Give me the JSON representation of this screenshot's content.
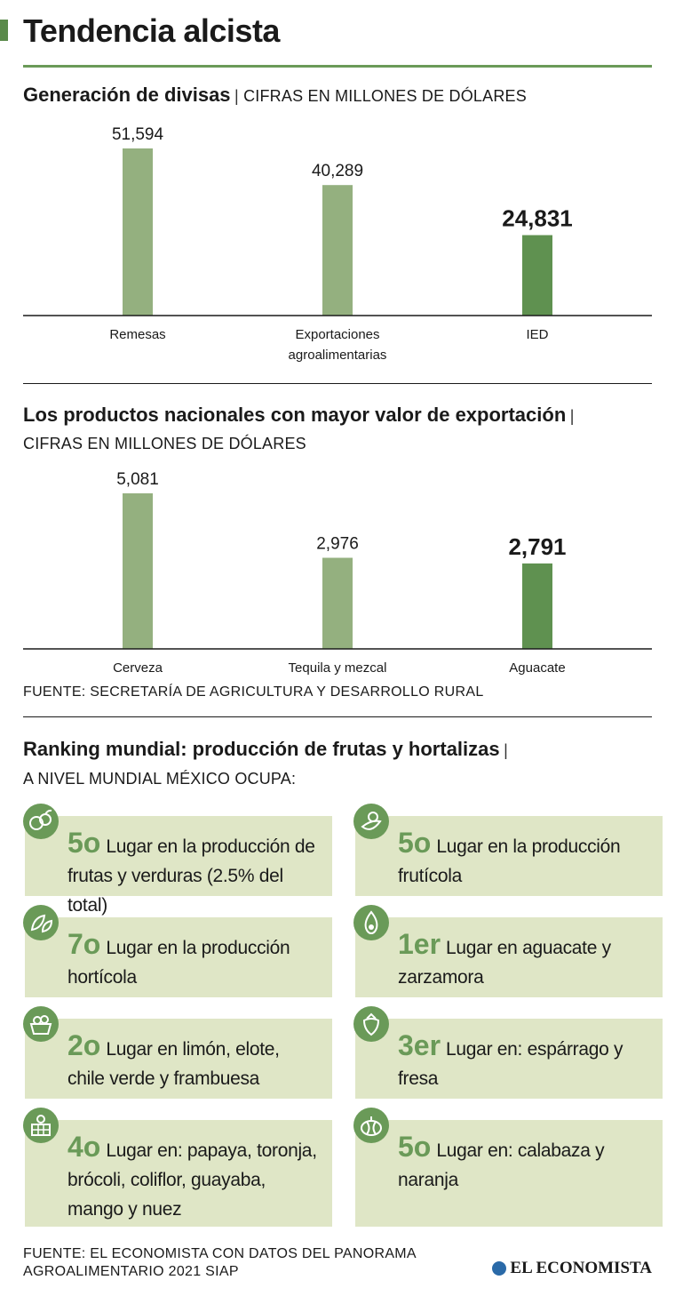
{
  "title": "Tendencia alcista",
  "section1": {
    "title": "Generación de divisas",
    "subtitle": "CIFRAS EN MILLONES DE DÓLARES"
  },
  "section2": {
    "title": "Los productos nacionales con mayor valor de exportación",
    "subtitle": "CIFRAS EN MILLONES DE DÓLARES",
    "source": "FUENTE: SECRETARÍA DE AGRICULTURA Y DESARROLLO RURAL"
  },
  "section3": {
    "title": "Ranking mundial: producción de frutas y hortalizas",
    "subtitle": "A NIVEL MUNDIAL MÉXICO OCUPA:",
    "cards": [
      {
        "rank": "5o",
        "text": "Lugar en la producción de frutas y verduras (2.5% del total)",
        "icon": "fruits-vegetables-icon"
      },
      {
        "rank": "5o",
        "text": "Lugar en la producción frutícola",
        "icon": "fruit-icon"
      },
      {
        "rank": "7o",
        "text": "Lugar en la producción hortícola",
        "icon": "leaves-icon"
      },
      {
        "rank": "1er",
        "text": "Lugar en aguacate y zarzamora",
        "icon": "avocado-icon"
      },
      {
        "rank": "2o",
        "text": "Lugar en limón, elote, chile verde y frambuesa",
        "icon": "basket-icon"
      },
      {
        "rank": "3er",
        "text": "Lugar en: espárrago y fresa",
        "icon": "strawberry-icon"
      },
      {
        "rank": "4o",
        "text": "Lugar en: papaya, toronja, brócoli, coliflor, guayaba, mango y nuez",
        "icon": "produce-basket-icon"
      },
      {
        "rank": "5o",
        "text": "Lugar en: calabaza y naranja",
        "icon": "pumpkin-icon"
      }
    ]
  },
  "footer": {
    "source": "FUENTE: EL ECONOMISTA CON DATOS DEL PANORAMA AGROALIMENTARIO 2021 SIAP",
    "logo": "EL ECONOMISTA"
  },
  "colors": {
    "light_bar": "#94b07f",
    "dark_bar": "#5f9150",
    "accent": "#6a9a58",
    "card_bg": "#dfe6c6"
  },
  "chart_data": [
    {
      "type": "bar",
      "title": "Generación de divisas",
      "ylabel": "Millones de dólares",
      "categories": [
        "Remesas",
        "Exportaciones agroalimentarias",
        "IED"
      ],
      "values": [
        51594,
        40289,
        24831
      ],
      "value_labels": [
        "51,594",
        "40,289",
        "24,831"
      ],
      "highlight_index": 2,
      "ylim": [
        0,
        51594
      ]
    },
    {
      "type": "bar",
      "title": "Los productos nacionales con mayor valor de exportación",
      "ylabel": "Millones de dólares",
      "categories": [
        "Cerveza",
        "Tequila y mezcal",
        "Aguacate"
      ],
      "values": [
        5081,
        2976,
        2791
      ],
      "value_labels": [
        "5,081",
        "2,976",
        "2,791"
      ],
      "highlight_index": 2,
      "ylim": [
        0,
        5081
      ]
    }
  ]
}
